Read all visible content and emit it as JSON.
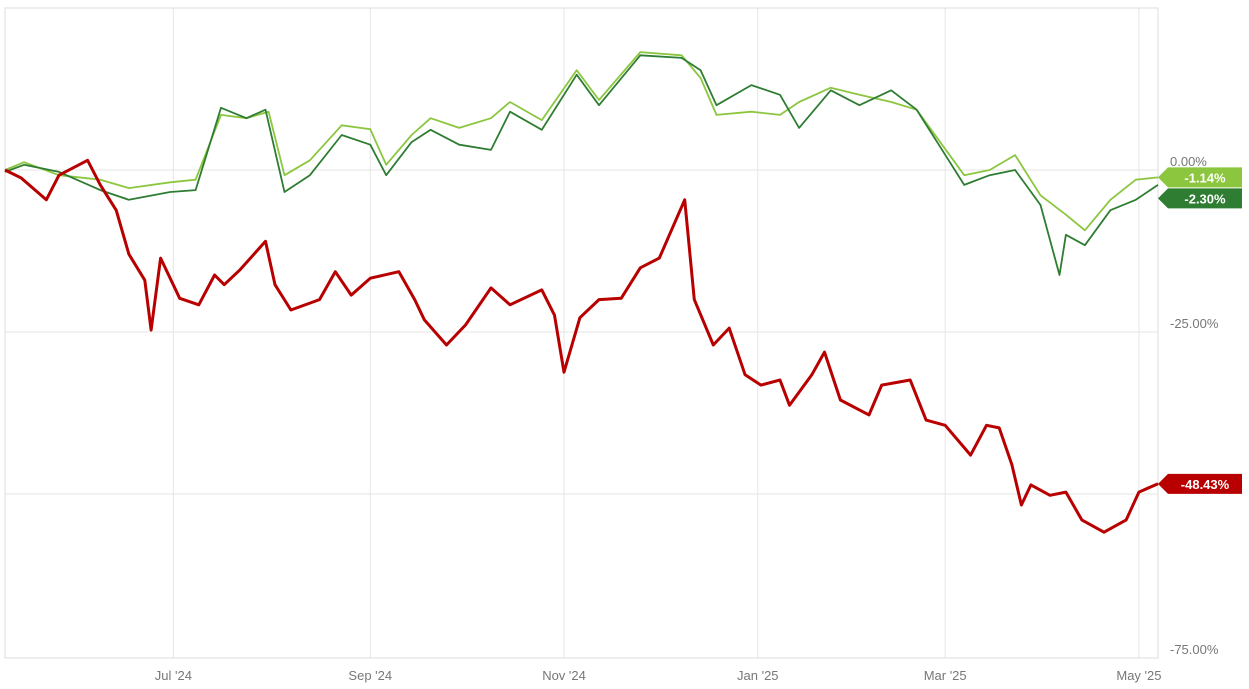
{
  "chart_data": {
    "type": "line",
    "title": "",
    "xlabel": "",
    "ylabel": "",
    "xlim": [
      "2024-05-09",
      "2025-05-07"
    ],
    "ylim": [
      -75,
      25
    ],
    "grid": true,
    "x_ticks": [
      {
        "date": "2024-07-01",
        "label": "Jul '24"
      },
      {
        "date": "2024-09-01",
        "label": "Sep '24"
      },
      {
        "date": "2024-11-01",
        "label": "Nov '24"
      },
      {
        "date": "2025-01-01",
        "label": "Jan '25"
      },
      {
        "date": "2025-03-01",
        "label": "Mar '25"
      },
      {
        "date": "2025-05-01",
        "label": "May '25"
      }
    ],
    "y_ticks": [
      {
        "value": 0,
        "label": "0.00%"
      },
      {
        "value": -25,
        "label": "-25.00%"
      },
      {
        "value": -50,
        "label": ""
      },
      {
        "value": -75,
        "label": "-75.00%"
      }
    ],
    "series": [
      {
        "color": "#8cc63f",
        "width": 1.8,
        "last_label": "-1.14%",
        "x": [
          "2024-05-09",
          "2024-05-15",
          "2024-05-26",
          "2024-06-08",
          "2024-06-17",
          "2024-06-30",
          "2024-07-08",
          "2024-07-16",
          "2024-07-24",
          "2024-07-31",
          "2024-08-05",
          "2024-08-13",
          "2024-08-23",
          "2024-09-01",
          "2024-09-06",
          "2024-09-14",
          "2024-09-20",
          "2024-09-29",
          "2024-10-09",
          "2024-10-15",
          "2024-10-25",
          "2024-11-05",
          "2024-11-12",
          "2024-11-25",
          "2024-12-08",
          "2024-12-14",
          "2024-12-19",
          "2024-12-30",
          "2025-01-08",
          "2025-01-14",
          "2025-01-24",
          "2025-02-02",
          "2025-02-12",
          "2025-02-20",
          "2025-02-27",
          "2025-03-07",
          "2025-03-15",
          "2025-03-23",
          "2025-03-31",
          "2025-04-08",
          "2025-04-14",
          "2025-04-22",
          "2025-04-30",
          "2025-05-07"
        ],
        "y": [
          0,
          1.2,
          -0.8,
          -1.5,
          -2.8,
          -1.9,
          -1.5,
          8.5,
          8,
          9,
          -0.8,
          1.5,
          6.9,
          6.3,
          0.8,
          5.4,
          8,
          6.5,
          8,
          10.5,
          7.7,
          15.4,
          10.8,
          18.2,
          17.7,
          14.2,
          8.5,
          9,
          8.5,
          10.5,
          12.7,
          11.6,
          10.5,
          9.3,
          4.6,
          -0.8,
          0,
          2.3,
          -3.9,
          -6.9,
          -9.3,
          -4.6,
          -1.5,
          -1.14
        ]
      },
      {
        "color": "#2e7d32",
        "width": 1.8,
        "last_label": "-2.30%",
        "x": [
          "2024-05-09",
          "2024-05-15",
          "2024-05-26",
          "2024-06-08",
          "2024-06-17",
          "2024-06-30",
          "2024-07-08",
          "2024-07-16",
          "2024-07-24",
          "2024-07-30",
          "2024-08-05",
          "2024-08-13",
          "2024-08-23",
          "2024-09-01",
          "2024-09-06",
          "2024-09-14",
          "2024-09-20",
          "2024-09-29",
          "2024-10-09",
          "2024-10-15",
          "2024-10-25",
          "2024-11-05",
          "2024-11-12",
          "2024-11-25",
          "2024-12-08",
          "2024-12-14",
          "2024-12-19",
          "2024-12-30",
          "2025-01-08",
          "2025-01-14",
          "2025-01-24",
          "2025-02-02",
          "2025-02-12",
          "2025-02-20",
          "2025-02-27",
          "2025-03-07",
          "2025-03-15",
          "2025-03-23",
          "2025-03-31",
          "2025-04-06",
          "2025-04-08",
          "2025-04-14",
          "2025-04-22",
          "2025-04-30",
          "2025-05-07"
        ],
        "y": [
          -0.3,
          0.8,
          -0.3,
          -3.1,
          -4.6,
          -3.4,
          -3.1,
          9.6,
          8,
          9.3,
          -3.4,
          -0.8,
          5.4,
          3.9,
          -0.8,
          4.3,
          6.2,
          3.9,
          3.1,
          9,
          6.2,
          14.7,
          10,
          17.7,
          17.3,
          15.4,
          10,
          13.1,
          11.6,
          6.5,
          12.3,
          10,
          12.3,
          9.3,
          3.9,
          -2.3,
          -0.8,
          0,
          -5.4,
          -16.2,
          -10,
          -11.6,
          -6.2,
          -4.6,
          -2.3
        ]
      },
      {
        "color": "#b80000",
        "width": 3,
        "last_label": "-48.43%",
        "x": [
          "2024-05-09",
          "2024-05-14",
          "2024-05-22",
          "2024-05-26",
          "2024-06-04",
          "2024-06-08",
          "2024-06-13",
          "2024-06-17",
          "2024-06-22",
          "2024-06-24",
          "2024-06-27",
          "2024-07-03",
          "2024-07-09",
          "2024-07-14",
          "2024-07-17",
          "2024-07-22",
          "2024-07-30",
          "2024-08-02",
          "2024-08-07",
          "2024-08-16",
          "2024-08-21",
          "2024-08-26",
          "2024-09-01",
          "2024-09-10",
          "2024-09-15",
          "2024-09-18",
          "2024-09-25",
          "2024-10-01",
          "2024-10-09",
          "2024-10-15",
          "2024-10-25",
          "2024-10-29",
          "2024-11-01",
          "2024-11-06",
          "2024-11-12",
          "2024-11-19",
          "2024-11-25",
          "2024-12-01",
          "2024-12-09",
          "2024-12-12",
          "2024-12-18",
          "2024-12-23",
          "2024-12-28",
          "2025-01-02",
          "2025-01-08",
          "2025-01-11",
          "2025-01-18",
          "2025-01-22",
          "2025-01-27",
          "2025-02-05",
          "2025-02-09",
          "2025-02-18",
          "2025-02-23",
          "2025-03-01",
          "2025-03-09",
          "2025-03-14",
          "2025-03-18",
          "2025-03-22",
          "2025-03-25",
          "2025-03-28",
          "2025-04-03",
          "2025-04-08",
          "2025-04-13",
          "2025-04-20",
          "2025-04-27",
          "2025-05-01",
          "2025-05-07"
        ],
        "y": [
          0,
          -1.2,
          -4.6,
          -0.8,
          1.5,
          -2.3,
          -6.2,
          -13,
          -17,
          -24.7,
          -13.6,
          -19.8,
          -20.8,
          -16.2,
          -17.7,
          -15.4,
          -11,
          -17.7,
          -21.6,
          -20,
          -15.7,
          -19.3,
          -16.7,
          -15.7,
          -20,
          -23.1,
          -27,
          -23.9,
          -18.2,
          -20.8,
          -18.5,
          -22.4,
          -31.2,
          -22.8,
          -20,
          -19.8,
          -15.1,
          -13.6,
          -4.6,
          -20,
          -27,
          -24.4,
          -31.6,
          -33.2,
          -32.4,
          -36.3,
          -31.6,
          -28.1,
          -35.5,
          -37.8,
          -33.2,
          -32.4,
          -38.6,
          -39.4,
          -44,
          -39.4,
          -39.8,
          -45.5,
          -51.7,
          -48.6,
          -50.2,
          -49.7,
          -54,
          -55.9,
          -54,
          -49.7,
          -48.43
        ]
      }
    ]
  }
}
